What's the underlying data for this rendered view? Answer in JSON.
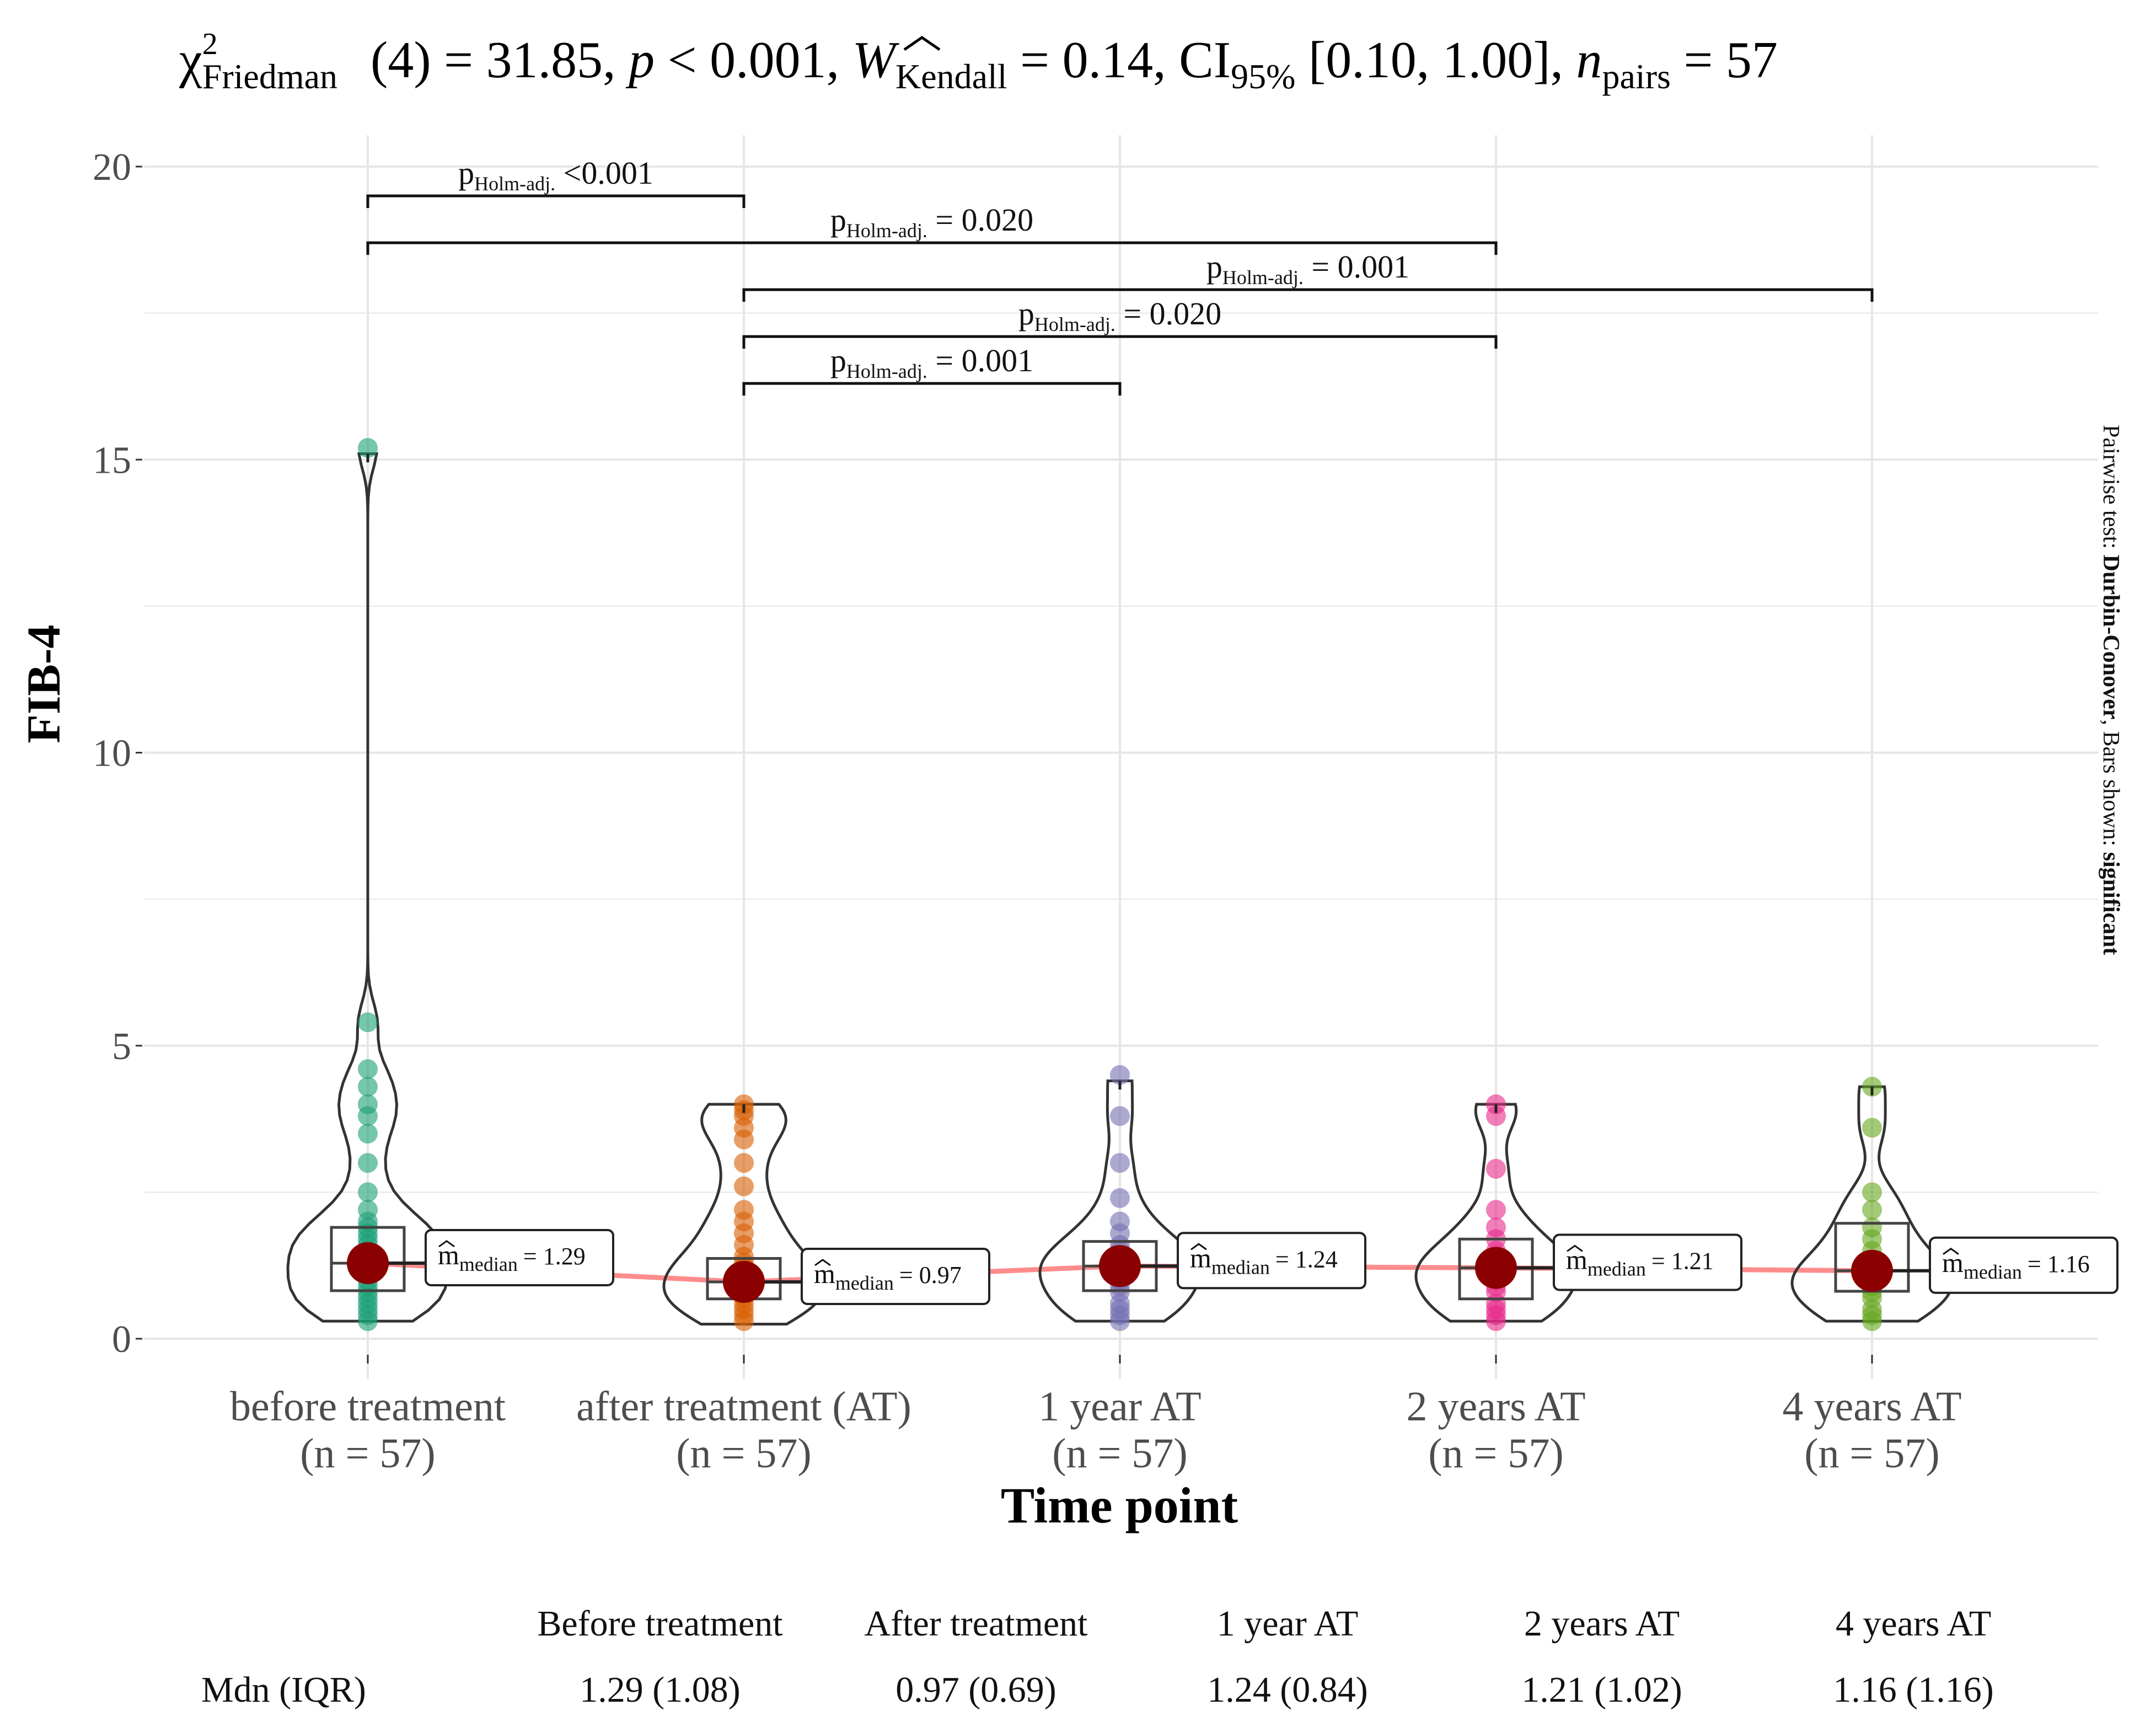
{
  "chart_data": {
    "type": "violin-box",
    "subtitle": "χ²Friedman (4) = 31.85, p < 0.001, ŴKendall = 0.14, CI95% [0.10, 1.00], npairs = 57",
    "subtitle_parts": {
      "chi": "χ",
      "chi_sup": "2",
      "chi_sub": "Friedman",
      "stat": "(4) = 31.85, ",
      "p_sym": "p",
      "p_val": " < 0.001, ",
      "w_sym": "W",
      "w_sub": "Kendall",
      "w_val": " = 0.14, CI",
      "ci_sub": "95%",
      "ci_val": " [0.10, 1.00], ",
      "n_sym": "n",
      "n_sub": "pairs",
      "n_val": " = 57"
    },
    "xlabel": "Time point",
    "ylabel": "FIB-4",
    "ylim": [
      0,
      20
    ],
    "yticks": [
      0,
      5,
      10,
      15,
      20
    ],
    "categories": [
      "before treatment",
      "after treatment (AT)",
      "1 year AT",
      "2 years AT",
      "4 years AT"
    ],
    "n_labels": [
      "(n = 57)",
      "(n = 57)",
      "(n = 57)",
      "(n = 57)",
      "(n = 57)"
    ],
    "colors": [
      "#1b9e77",
      "#d95f02",
      "#7570b3",
      "#e7298a",
      "#66a61e"
    ],
    "median_color": "#8b0000",
    "trend_color": "#ff7f7f",
    "medians": [
      1.29,
      0.97,
      1.24,
      1.21,
      1.16
    ],
    "median_labels": [
      "= 1.29",
      "= 0.97",
      "= 1.24",
      "= 1.21",
      "= 1.16"
    ],
    "median_label_m": "m",
    "median_label_sub": "median",
    "quartiles": [
      [
        0.82,
        1.9
      ],
      [
        0.68,
        1.37
      ],
      [
        0.82,
        1.66
      ],
      [
        0.68,
        1.7
      ],
      [
        0.81,
        1.97
      ]
    ],
    "points": [
      [
        0.3,
        0.4,
        0.5,
        0.6,
        0.7,
        0.8,
        0.9,
        1.0,
        1.1,
        1.2,
        1.3,
        1.4,
        1.5,
        1.6,
        1.7,
        1.8,
        1.9,
        2.0,
        2.2,
        2.5,
        3.0,
        3.5,
        3.8,
        4.0,
        4.3,
        4.6,
        5.4,
        15.2
      ],
      [
        0.3,
        0.4,
        0.5,
        0.6,
        0.7,
        0.8,
        0.9,
        1.0,
        1.1,
        1.2,
        1.3,
        1.4,
        1.6,
        1.8,
        2.0,
        2.2,
        2.6,
        3.0,
        3.4,
        3.6,
        3.8,
        3.9,
        4.0
      ],
      [
        0.3,
        0.4,
        0.5,
        0.6,
        0.8,
        0.9,
        1.0,
        1.1,
        1.2,
        1.3,
        1.4,
        1.5,
        1.6,
        1.8,
        2.0,
        2.4,
        3.0,
        3.8,
        4.5
      ],
      [
        0.3,
        0.4,
        0.5,
        0.6,
        0.8,
        0.9,
        1.0,
        1.1,
        1.2,
        1.3,
        1.4,
        1.5,
        1.7,
        1.9,
        2.2,
        2.9,
        3.8,
        4.0
      ],
      [
        0.3,
        0.4,
        0.5,
        0.7,
        0.8,
        0.9,
        1.0,
        1.1,
        1.2,
        1.3,
        1.5,
        1.7,
        1.9,
        2.2,
        2.5,
        3.6,
        4.3
      ]
    ],
    "violin_top": [
      15.1,
      4.0,
      4.4,
      4.0,
      4.3
    ],
    "violin_min": [
      0.3,
      0.25,
      0.3,
      0.3,
      0.3
    ],
    "comparisons": [
      {
        "from": 0,
        "to": 1,
        "y": 19.5,
        "label_val": " <0.001"
      },
      {
        "from": 0,
        "to": 3,
        "y": 18.7,
        "label_val": " = 0.020"
      },
      {
        "from": 1,
        "to": 4,
        "y": 17.9,
        "label_val": " = 0.001"
      },
      {
        "from": 1,
        "to": 3,
        "y": 17.1,
        "label_val": " = 0.020"
      },
      {
        "from": 1,
        "to": 2,
        "y": 16.3,
        "label_val": " = 0.001"
      }
    ],
    "p_label_main": "p",
    "p_label_sub": "Holm-adj.",
    "side_note": {
      "prefix": "Pairwise test: ",
      "test": "Durbin-Conover",
      "mid": ", Bars shown: ",
      "shown": "significant"
    }
  },
  "summary_table": {
    "columns": [
      "Before treatment",
      "After treatment",
      "1 year AT",
      "2 years AT",
      "4 years AT"
    ],
    "row_label": "Mdn (IQR)",
    "values": [
      "1.29 (1.08)",
      "0.97 (0.69)",
      "1.24 (0.84)",
      "1.21 (1.02)",
      "1.16 (1.16)"
    ]
  }
}
